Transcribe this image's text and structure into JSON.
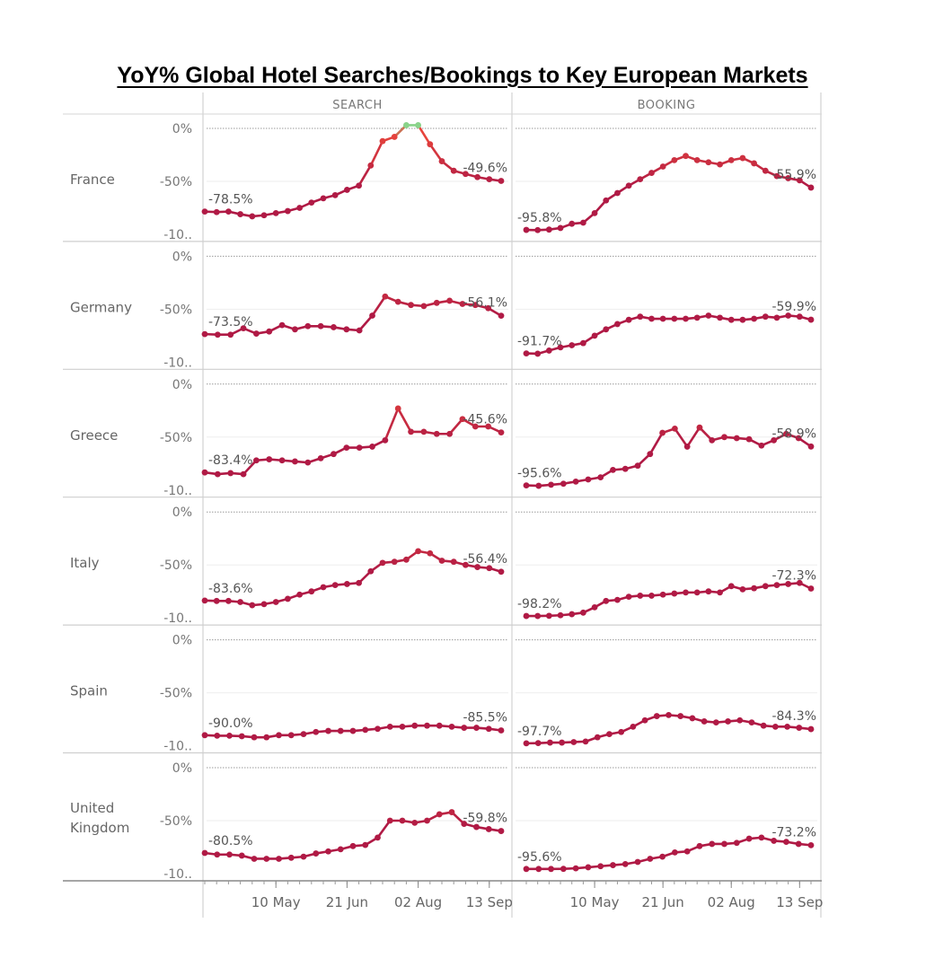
{
  "title": "YoY% Global Hotel Searches/Bookings to Key European Markets",
  "chart_data": {
    "type": "line",
    "title": "YoY% Global Hotel Searches/Bookings to Key European Markets",
    "columns": [
      "SEARCH",
      "BOOKING"
    ],
    "y_ticks": [
      "0%",
      "-50%",
      "-10.."
    ],
    "ylim": [
      -100,
      0
    ],
    "x_ticks": [
      "10 May",
      "21 Jun",
      "02 Aug",
      "13 Sep"
    ],
    "x_tick_weeks": [
      6,
      12,
      18,
      24
    ],
    "colors": {
      "line": "#b01a45",
      "high": "#e8453c",
      "peak": "#8ad38a"
    },
    "rows": [
      {
        "market": "France",
        "search": {
          "start_label": "-78.5%",
          "end_label": "-49.6%",
          "values": [
            -78.5,
            -79,
            -78.5,
            -81,
            -83,
            -82,
            -80,
            -78,
            -75,
            -70,
            -66,
            -63,
            -58,
            -54,
            -35,
            -12,
            -8,
            3,
            3,
            -15,
            -31,
            -40,
            -43,
            -46,
            -48,
            -49.6
          ]
        },
        "booking": {
          "start_label": "-95.8%",
          "end_label": "-55.9%",
          "values": [
            -95.8,
            -96,
            -95.5,
            -94,
            -90,
            -89,
            -80,
            -68,
            -61,
            -54,
            -48,
            -42,
            -36,
            -30,
            -26,
            -30,
            -32,
            -34,
            -30,
            -28,
            -33,
            -40,
            -45,
            -47,
            -49,
            -55.9
          ]
        }
      },
      {
        "market": "Germany",
        "search": {
          "start_label": "-73.5%",
          "end_label": "-56.1%",
          "values": [
            -73.5,
            -74,
            -74,
            -68,
            -73,
            -71,
            -65,
            -69,
            -66,
            -66,
            -67,
            -69,
            -70,
            -56,
            -38,
            -43,
            -46,
            -47,
            -44,
            -42,
            -45,
            -46,
            -49,
            -56.1
          ]
        },
        "booking": {
          "start_label": "-91.7%",
          "end_label": "-59.9%",
          "values": [
            -91.7,
            -92,
            -89,
            -86,
            -84,
            -82,
            -75,
            -69,
            -64,
            -60,
            -57,
            -59,
            -59,
            -59,
            -59,
            -58,
            -56,
            -58,
            -60,
            -60,
            -59,
            -57,
            -58,
            -56,
            -57,
            -59.9
          ]
        }
      },
      {
        "market": "Greece",
        "search": {
          "start_label": "-83.4%",
          "end_label": "-45.6%",
          "values": [
            -83.4,
            -85,
            -84,
            -85,
            -72,
            -71,
            -72,
            -73,
            -74,
            -70,
            -66,
            -60,
            -60,
            -59,
            -53,
            -23,
            -45,
            -45,
            -47,
            -47,
            -33,
            -40,
            -40,
            -45.6
          ]
        },
        "booking": {
          "start_label": "-95.6%",
          "end_label": "-58.9%",
          "values": [
            -95.6,
            -96,
            -95,
            -94,
            -92,
            -90,
            -88,
            -81,
            -80,
            -77,
            -66,
            -46,
            -42,
            -59,
            -41,
            -53,
            -50,
            -51,
            -52,
            -58,
            -53,
            -47,
            -51,
            -58.9
          ]
        }
      },
      {
        "market": "Italy",
        "search": {
          "start_label": "-83.6%",
          "end_label": "-56.4%",
          "values": [
            -83.6,
            -84,
            -84,
            -85,
            -88,
            -87,
            -85,
            -82,
            -78,
            -75,
            -71,
            -69,
            -68,
            -67,
            -56,
            -48,
            -47,
            -45,
            -37,
            -39,
            -46,
            -47,
            -50,
            -52,
            -53,
            -56.4
          ]
        },
        "booking": {
          "start_label": "-98.2%",
          "end_label": "-72.3%",
          "values": [
            -98.2,
            -98.2,
            -98,
            -97.5,
            -96.5,
            -95,
            -90,
            -84,
            -83,
            -80,
            -79,
            -79,
            -78,
            -77,
            -76,
            -76,
            -75,
            -76,
            -70,
            -73,
            -72,
            -70,
            -69,
            -68,
            -67,
            -72.3
          ]
        }
      },
      {
        "market": "Spain",
        "search": {
          "start_label": "-90.0%",
          "end_label": "-85.5%",
          "values": [
            -90,
            -90.5,
            -90.5,
            -91,
            -92,
            -92,
            -90,
            -90,
            -89,
            -87,
            -86,
            -86,
            -86,
            -85,
            -84,
            -82,
            -82,
            -81,
            -81,
            -81,
            -82,
            -83,
            -83,
            -84,
            -85.5
          ]
        },
        "booking": {
          "start_label": "-97.7%",
          "end_label": "-84.3%",
          "values": [
            -97.7,
            -97.5,
            -97,
            -97,
            -96.5,
            -96,
            -92,
            -89,
            -87,
            -82,
            -76,
            -72,
            -71,
            -72,
            -74,
            -77,
            -78,
            -77,
            -76,
            -78,
            -81,
            -82,
            -82,
            -83,
            -84.3
          ]
        }
      },
      {
        "market": "United Kingdom",
        "search": {
          "start_label": "-80.5%",
          "end_label": "-59.8%",
          "values": [
            -80.5,
            -82,
            -82,
            -83,
            -86,
            -86,
            -86,
            -85,
            -84,
            -81,
            -79,
            -77,
            -74,
            -73,
            -66,
            -50,
            -50,
            -52,
            -50,
            -44,
            -42,
            -53,
            -56,
            -58,
            -59.8
          ]
        },
        "booking": {
          "start_label": "-95.6%",
          "end_label": "-73.2%",
          "values": [
            -95.6,
            -95.6,
            -95.6,
            -95.5,
            -95,
            -94,
            -93,
            -92,
            -91,
            -89,
            -86,
            -84,
            -80,
            -79,
            -74,
            -72,
            -72,
            -71,
            -67,
            -66,
            -69,
            -70,
            -72,
            -73.2
          ]
        }
      }
    ]
  }
}
